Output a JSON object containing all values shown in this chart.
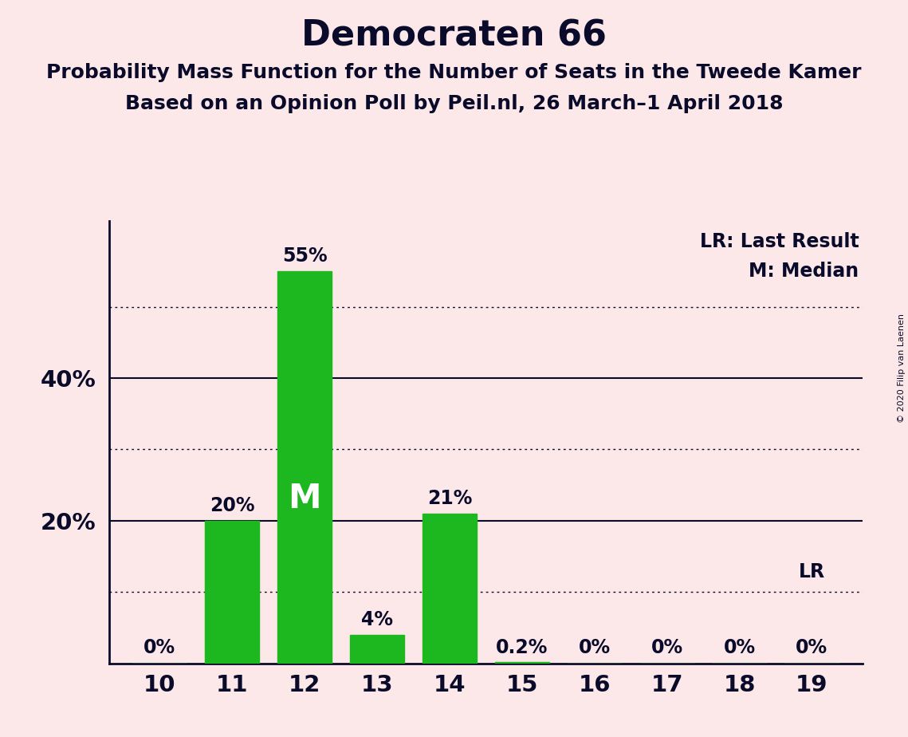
{
  "title": "Democraten 66",
  "subtitle1": "Probability Mass Function for the Number of Seats in the Tweede Kamer",
  "subtitle2": "Based on an Opinion Poll by Peil.nl, 26 March–1 April 2018",
  "copyright": "© 2020 Filip van Laenen",
  "seats": [
    10,
    11,
    12,
    13,
    14,
    15,
    16,
    17,
    18,
    19
  ],
  "probabilities": [
    0.0,
    0.2,
    0.55,
    0.04,
    0.21,
    0.002,
    0.0,
    0.0,
    0.0,
    0.0
  ],
  "bar_labels": [
    "0%",
    "20%",
    "55%",
    "4%",
    "21%",
    "0.2%",
    "0%",
    "0%",
    "0%",
    "0%"
  ],
  "bar_color": "#1db820",
  "background_color": "#fce8e8",
  "text_color": "#0a0a2a",
  "median_seat": 12,
  "median_label": "M",
  "lr_seat": 19,
  "lr_label": "LR",
  "legend_lr": "LR: Last Result",
  "legend_m": "M: Median",
  "ylim": [
    0,
    0.62
  ],
  "solid_yticks": [
    0.2,
    0.4
  ],
  "dotted_yticks": [
    0.1,
    0.3,
    0.5
  ],
  "title_fontsize": 32,
  "subtitle_fontsize": 18,
  "label_fontsize": 17,
  "tick_fontsize": 21
}
